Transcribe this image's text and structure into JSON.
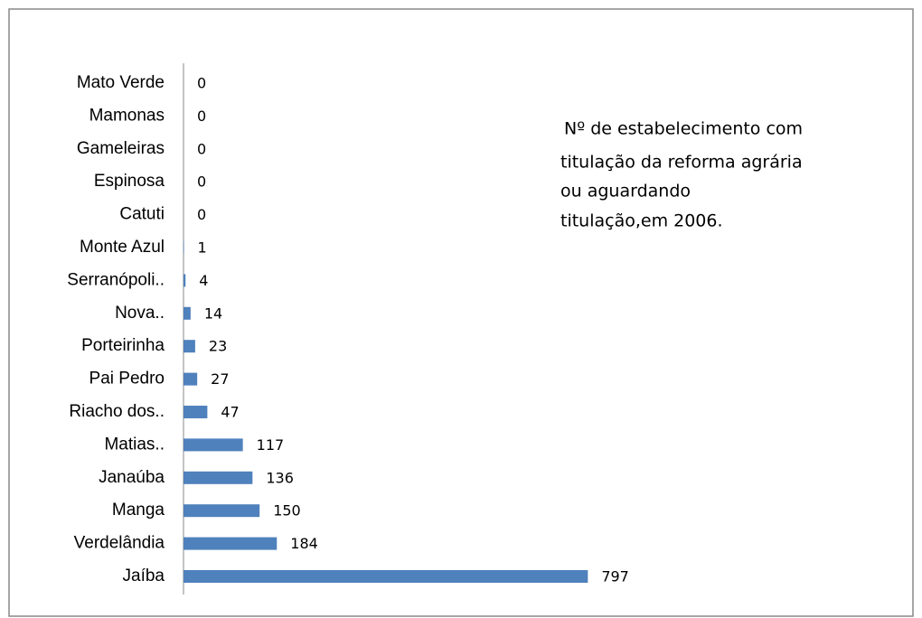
{
  "chart_data": {
    "type": "barh",
    "annotation": [
      "Nº de estabelecimento com",
      "titulação da reforma agrária",
      "ou aguardando",
      "titulação,em 2006."
    ],
    "categories": [
      "Mato Verde",
      "Mamonas",
      "Gameleiras",
      "Espinosa",
      "Catuti",
      "Monte Azul",
      "Serranópoli..",
      "Nova..",
      "Porteirinha",
      "Pai Pedro",
      "Riacho dos..",
      "Matias..",
      "Janaúba",
      "Manga",
      "Verdelândia",
      "Jaíba"
    ],
    "values": [
      0,
      0,
      0,
      0,
      0,
      1,
      4,
      14,
      23,
      27,
      47,
      117,
      136,
      150,
      184,
      797
    ],
    "color": "#4f81bd",
    "xlim": [
      0,
      800
    ]
  }
}
